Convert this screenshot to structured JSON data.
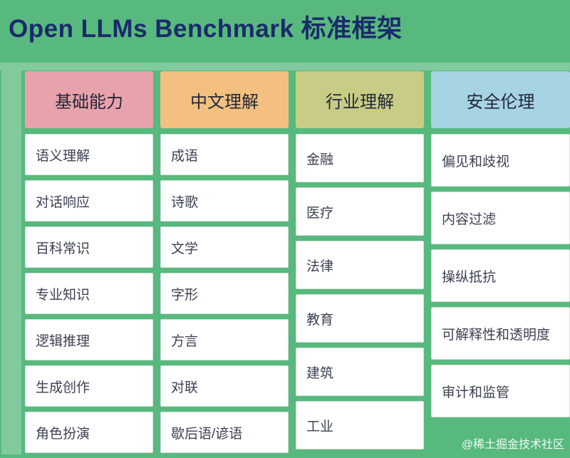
{
  "title": "Open LLMs Benchmark 标准框架",
  "watermark": "@稀土掘金技术社区",
  "colors": {
    "background": "#57b97e",
    "title_text": "#1b2a6b",
    "cell_background": "#ffffff",
    "cell_text": "#3c4152",
    "header_backgrounds": [
      "#e8a2ab",
      "#f3c07f",
      "#c9cc85",
      "#a6d4e2"
    ]
  },
  "columns": [
    {
      "header": "基础能力",
      "items": [
        "语义理解",
        "对话响应",
        "百科常识",
        "专业知识",
        "逻辑推理",
        "生成创作",
        "角色扮演"
      ]
    },
    {
      "header": "中文理解",
      "items": [
        "成语",
        "诗歌",
        "文学",
        "字形",
        "方言",
        "对联",
        "歇后语/谚语"
      ]
    },
    {
      "header": "行业理解",
      "items": [
        "金融",
        "医疗",
        "法律",
        "教育",
        "建筑",
        "工业"
      ]
    },
    {
      "header": "安全伦理",
      "items": [
        "偏见和歧视",
        "内容过滤",
        "操纵抵抗",
        "可解释性和透明度",
        "审计和监管"
      ]
    }
  ]
}
